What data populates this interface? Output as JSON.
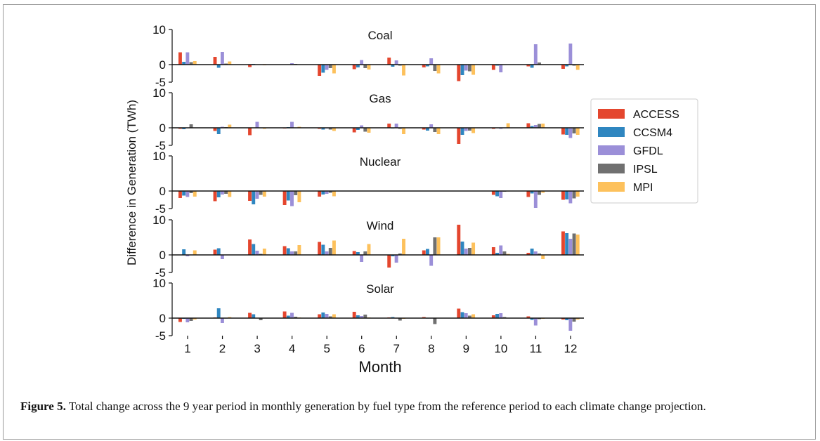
{
  "caption": {
    "label": "Figure 5.",
    "text": "Total change across the 9 year period in monthly generation by fuel type from the reference period to each climate change projection."
  },
  "chart_data": {
    "type": "bar",
    "layout": "stacked-panels-shared-x",
    "xlabel": "Month",
    "ylabel": "Difference in Generation (TWh)",
    "categories": [
      "1",
      "2",
      "3",
      "4",
      "5",
      "6",
      "7",
      "8",
      "9",
      "10",
      "11",
      "12"
    ],
    "ylim": [
      -5,
      10
    ],
    "yticks": [
      10,
      0,
      -5
    ],
    "legend": {
      "placement": "right"
    },
    "series_names": [
      "ACCESS",
      "CCSM4",
      "GFDL",
      "IPSL",
      "MPI"
    ],
    "colors": [
      "#e4462e",
      "#2f86c0",
      "#9b8fd8",
      "#707070",
      "#fdc15c"
    ],
    "panels": [
      {
        "title": "Coal",
        "series": [
          {
            "name": "ACCESS",
            "values": [
              3.5,
              2.2,
              -0.7,
              0.1,
              -3.2,
              -1.3,
              2.0,
              -0.8,
              -4.7,
              -1.5,
              -0.5,
              -1.2
            ]
          },
          {
            "name": "CCSM4",
            "values": [
              0.8,
              -0.9,
              0.2,
              0.0,
              -2.3,
              -0.8,
              -0.6,
              -0.5,
              -3.0,
              -0.3,
              -0.9,
              -0.5
            ]
          },
          {
            "name": "GFDL",
            "values": [
              3.5,
              3.6,
              0.1,
              0.4,
              -1.5,
              1.3,
              1.2,
              1.8,
              -1.7,
              -2.2,
              5.8,
              6.0
            ]
          },
          {
            "name": "IPSL",
            "values": [
              0.7,
              0.3,
              0.0,
              0.2,
              -1.0,
              -1.0,
              -0.3,
              -1.8,
              -1.9,
              -0.1,
              0.6,
              -0.3
            ]
          },
          {
            "name": "MPI",
            "values": [
              1.0,
              0.9,
              -0.2,
              0.1,
              -2.5,
              -1.4,
              -3.1,
              -2.5,
              -2.9,
              0.0,
              0.0,
              -1.5
            ]
          }
        ]
      },
      {
        "title": "Gas",
        "series": [
          {
            "name": "ACCESS",
            "values": [
              -0.3,
              -0.9,
              -2.1,
              -0.2,
              -0.3,
              -1.3,
              1.2,
              -0.5,
              -4.6,
              -0.3,
              1.3,
              -1.9
            ]
          },
          {
            "name": "CCSM4",
            "values": [
              -0.4,
              -1.8,
              0.1,
              0.2,
              -0.5,
              -0.6,
              -0.2,
              -0.8,
              -2.0,
              0.0,
              0.5,
              -2.0
            ]
          },
          {
            "name": "GFDL",
            "values": [
              0.0,
              0.3,
              1.7,
              1.7,
              -0.2,
              0.7,
              1.2,
              1.0,
              -0.9,
              -0.3,
              0.8,
              -2.9
            ]
          },
          {
            "name": "IPSL",
            "values": [
              1.0,
              0.2,
              -0.1,
              0.1,
              -0.5,
              -1.1,
              -0.3,
              -1.2,
              -0.8,
              0.1,
              1.1,
              -1.6
            ]
          },
          {
            "name": "MPI",
            "values": [
              0.0,
              0.9,
              -0.3,
              0.3,
              -0.9,
              -1.4,
              -1.8,
              -1.8,
              -1.5,
              1.3,
              1.2,
              -2.0
            ]
          }
        ]
      },
      {
        "title": "Nuclear",
        "series": [
          {
            "name": "ACCESS",
            "values": [
              -2.0,
              -2.9,
              -2.8,
              -4.0,
              -1.6,
              0.0,
              0.0,
              0.0,
              0.0,
              -1.1,
              -1.7,
              -2.5
            ]
          },
          {
            "name": "CCSM4",
            "values": [
              -1.3,
              -1.8,
              -3.8,
              -2.7,
              -1.0,
              0.0,
              0.0,
              0.0,
              0.0,
              -1.5,
              -0.7,
              -2.4
            ]
          },
          {
            "name": "GFDL",
            "values": [
              -1.7,
              -1.0,
              -2.2,
              -4.3,
              -0.8,
              0.0,
              0.0,
              0.0,
              0.0,
              -2.0,
              -4.8,
              -3.5
            ]
          },
          {
            "name": "IPSL",
            "values": [
              -0.6,
              -0.8,
              -1.1,
              -1.2,
              -0.5,
              0.0,
              0.0,
              0.0,
              0.0,
              -0.2,
              -1.1,
              -2.1
            ]
          },
          {
            "name": "MPI",
            "values": [
              -1.6,
              -1.7,
              -1.6,
              -3.2,
              -1.5,
              0.0,
              0.0,
              0.0,
              0.0,
              -0.1,
              -0.5,
              -1.6
            ]
          }
        ]
      },
      {
        "title": "Wind",
        "series": [
          {
            "name": "ACCESS",
            "values": [
              0.1,
              1.5,
              4.4,
              2.5,
              3.7,
              1.1,
              -3.6,
              1.3,
              8.6,
              2.2,
              0.6,
              6.7
            ]
          },
          {
            "name": "CCSM4",
            "values": [
              1.6,
              1.9,
              3.1,
              1.9,
              2.9,
              0.8,
              -0.4,
              1.7,
              3.8,
              0.6,
              1.8,
              6.2
            ]
          },
          {
            "name": "GFDL",
            "values": [
              -0.4,
              -1.2,
              1.2,
              1.0,
              1.0,
              -2.0,
              -2.2,
              -3.1,
              1.8,
              2.7,
              1.0,
              4.6
            ]
          },
          {
            "name": "IPSL",
            "values": [
              0.0,
              0.0,
              0.3,
              1.0,
              2.0,
              1.0,
              0.4,
              5.0,
              2.0,
              1.0,
              0.4,
              6.1
            ]
          },
          {
            "name": "MPI",
            "values": [
              1.3,
              0.0,
              1.8,
              2.8,
              4.1,
              3.1,
              4.6,
              5.0,
              3.5,
              0.3,
              -1.2,
              5.8
            ]
          }
        ]
      },
      {
        "title": "Solar",
        "series": [
          {
            "name": "ACCESS",
            "values": [
              -1.1,
              0.2,
              1.5,
              1.9,
              1.1,
              1.8,
              0.2,
              0.3,
              2.7,
              0.8,
              0.5,
              -0.4
            ]
          },
          {
            "name": "CCSM4",
            "values": [
              -0.2,
              2.8,
              1.1,
              0.7,
              1.6,
              0.8,
              0.3,
              -0.1,
              1.7,
              1.2,
              -0.5,
              -0.6
            ]
          },
          {
            "name": "GFDL",
            "values": [
              -1.2,
              -1.4,
              0.1,
              1.5,
              1.2,
              0.6,
              -0.1,
              -0.1,
              1.4,
              1.4,
              -2.1,
              -3.6
            ]
          },
          {
            "name": "IPSL",
            "values": [
              -0.8,
              -0.1,
              -0.6,
              0.4,
              0.5,
              1.0,
              -0.7,
              -1.7,
              0.7,
              0.3,
              -0.3,
              -1.0
            ]
          },
          {
            "name": "MPI",
            "values": [
              -0.4,
              0.3,
              0.0,
              0.2,
              1.1,
              0.2,
              -0.2,
              0.1,
              1.1,
              0.0,
              -0.2,
              -0.4
            ]
          }
        ]
      }
    ]
  }
}
